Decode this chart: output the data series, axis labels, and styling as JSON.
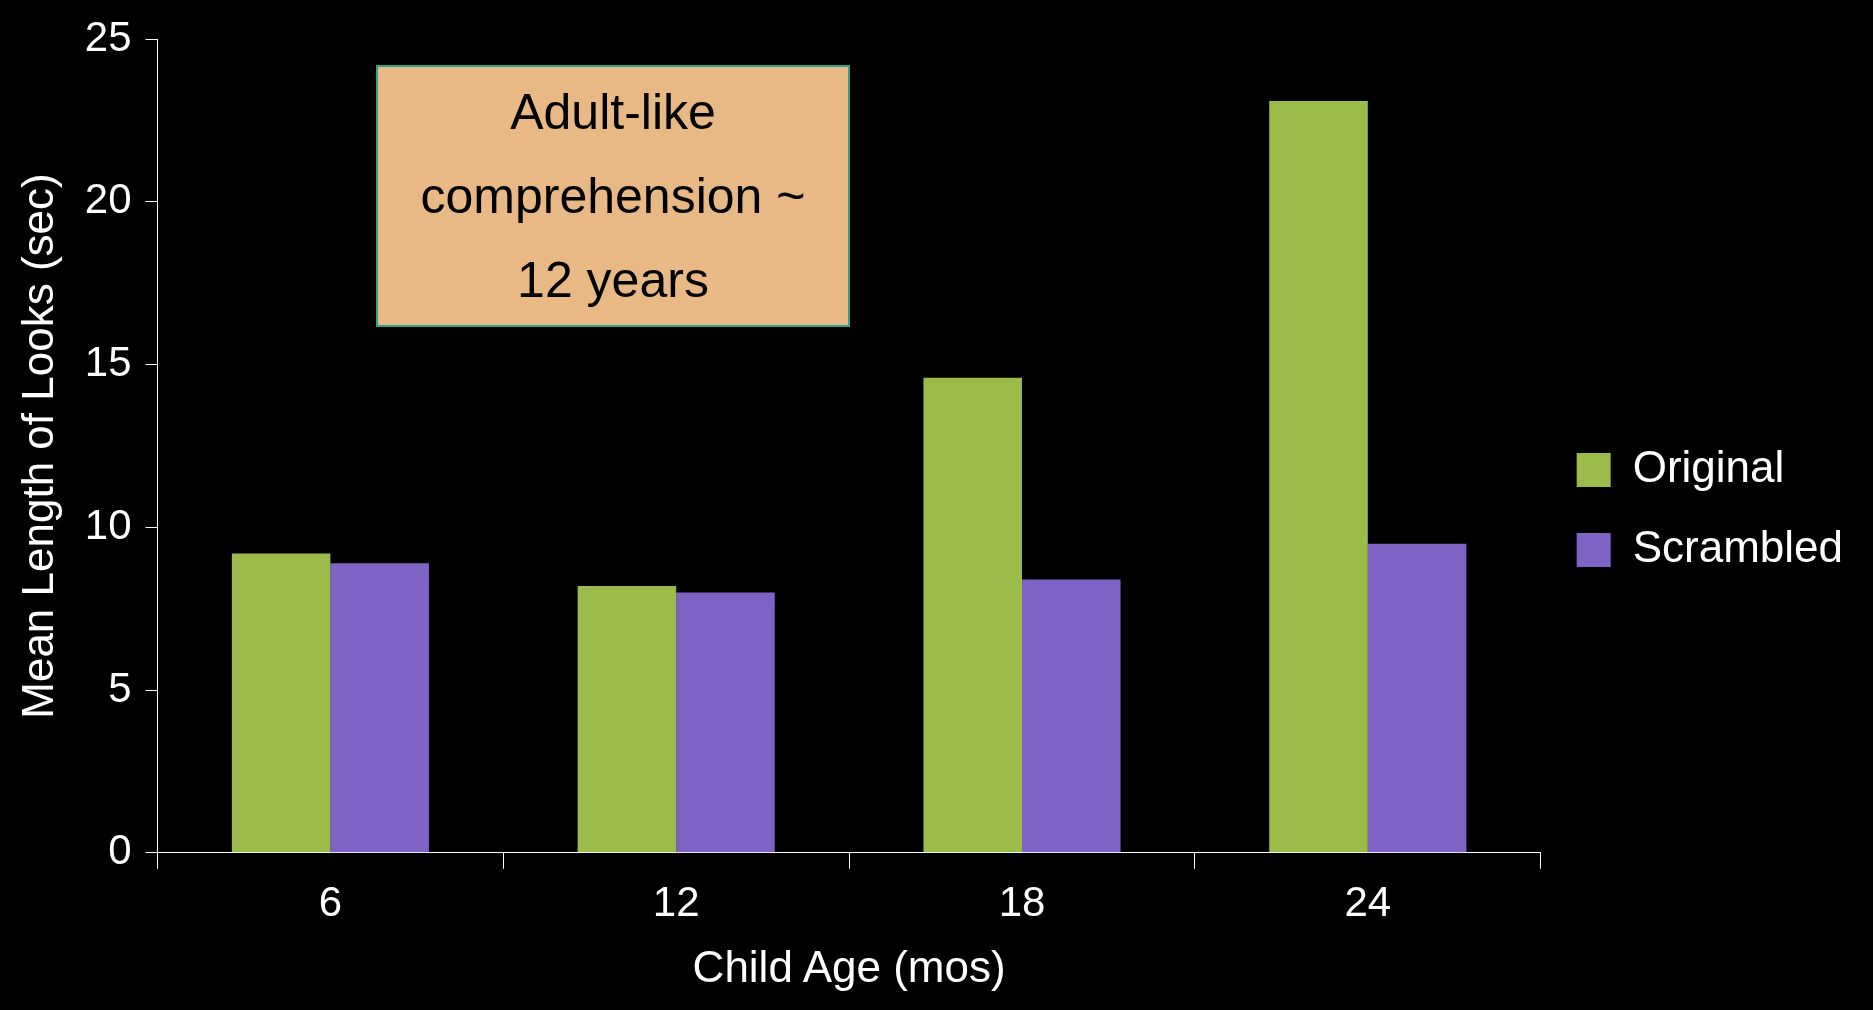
{
  "chart_data": {
    "type": "bar",
    "xlabel": "Child Age (mos)",
    "ylabel": "Mean Length of Looks (sec)",
    "categories": [
      "6",
      "12",
      "18",
      "24"
    ],
    "series": [
      {
        "name": "Original",
        "color": "#9bbb4a",
        "values": [
          9.2,
          8.2,
          14.6,
          23.1
        ]
      },
      {
        "name": "Scrambled",
        "color": "#7f63c4",
        "values": [
          8.9,
          8.0,
          8.4,
          9.5
        ]
      }
    ],
    "ylim": [
      0,
      25
    ],
    "yticks": [
      0,
      5,
      10,
      15,
      20,
      25
    ],
    "grid": false,
    "legend": "right",
    "annotations": [
      "Adult-like comprehension ~ 12 years"
    ]
  }
}
